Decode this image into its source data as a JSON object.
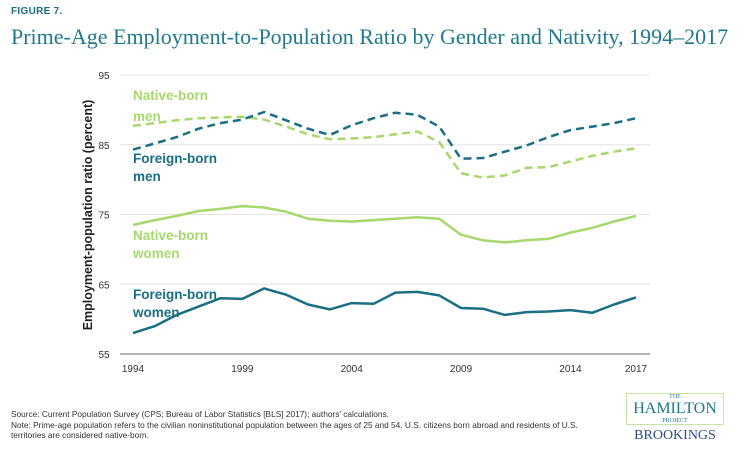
{
  "figure_label": "FIGURE 7.",
  "chart_data": {
    "type": "line",
    "title": "Prime-Age Employment-to-Population Ratio by Gender and Nativity, 1994–2017",
    "xlabel": "",
    "ylabel": "Employment-population ratio (percent)",
    "ylim": [
      55,
      95
    ],
    "yticks": [
      "55",
      "65",
      "75",
      "85",
      "95"
    ],
    "xticks": [
      "1994",
      "1999",
      "2004",
      "2009",
      "2014",
      "2017"
    ],
    "grid": true,
    "x": [
      1994,
      1995,
      1996,
      1997,
      1998,
      1999,
      2000,
      2001,
      2002,
      2003,
      2004,
      2005,
      2006,
      2007,
      2008,
      2009,
      2010,
      2011,
      2012,
      2013,
      2014,
      2015,
      2016,
      2017
    ],
    "series": [
      {
        "name": "Native-born men",
        "label_lines": [
          "Native-born",
          "men"
        ],
        "color": "#a6d86b",
        "dash": true,
        "values": [
          87.7,
          88.1,
          88.5,
          88.8,
          88.9,
          89.0,
          88.6,
          87.6,
          86.5,
          85.8,
          85.9,
          86.1,
          86.5,
          86.9,
          85.4,
          80.9,
          80.3,
          80.6,
          81.7,
          81.8,
          82.6,
          83.4,
          84.0,
          84.5
        ]
      },
      {
        "name": "Foreign-born men",
        "label_lines": [
          "Foreign-born",
          "men"
        ],
        "color": "#1b6f84",
        "dash": true,
        "values": [
          84.3,
          85.2,
          86.1,
          87.3,
          88.1,
          88.6,
          89.7,
          88.5,
          87.3,
          86.4,
          87.8,
          88.8,
          89.6,
          89.3,
          87.6,
          83.0,
          83.1,
          84.0,
          84.9,
          86.1,
          87.1,
          87.6,
          88.1,
          88.8
        ]
      },
      {
        "name": "Native-born women",
        "label_lines": [
          "Native-born",
          "women"
        ],
        "color": "#a6d86b",
        "dash": false,
        "values": [
          73.5,
          74.2,
          74.8,
          75.5,
          75.8,
          76.2,
          76.0,
          75.4,
          74.4,
          74.1,
          74.0,
          74.2,
          74.4,
          74.6,
          74.4,
          72.1,
          71.3,
          71.0,
          71.3,
          71.5,
          72.4,
          73.1,
          74.0,
          74.8
        ]
      },
      {
        "name": "Foreign-born women",
        "label_lines": [
          "Foreign-born",
          "women"
        ],
        "color": "#1b6f84",
        "dash": false,
        "values": [
          58.0,
          59.0,
          60.6,
          61.8,
          63.0,
          62.9,
          64.4,
          63.5,
          62.1,
          61.4,
          62.3,
          62.2,
          63.8,
          63.9,
          63.4,
          61.6,
          61.5,
          60.6,
          61.0,
          61.1,
          61.3,
          60.9,
          62.1,
          63.1
        ]
      }
    ]
  },
  "source": "Source: Current Population Survey (CPS; Bureau of Labor Statistics [BLS] 2017); authors' calculations.",
  "note": "Note: Prime-age population refers to the civilian noninstitutional population between the ages of 25 and 54. U.S. citizens born abroad and residents of U.S. territories are considered native-born.",
  "logo": {
    "the": "THE",
    "hamilton": "HAMILTON",
    "project": "PROJECT",
    "brookings": "BROOKINGS"
  }
}
